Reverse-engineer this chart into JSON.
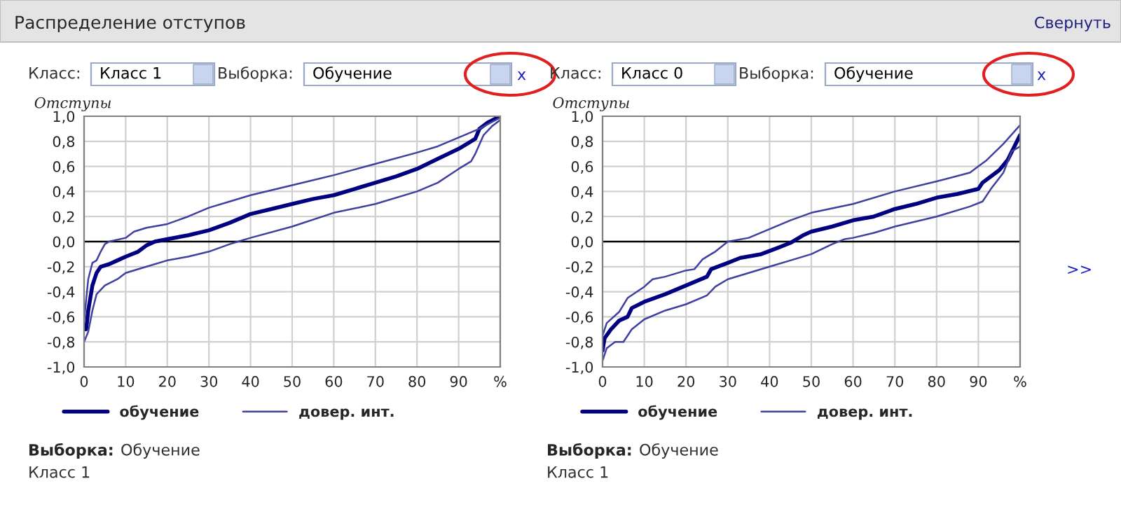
{
  "chart_data": [
    {
      "type": "line",
      "title": "Распределение отступов",
      "ylabel": "Отступы",
      "annotations": [
        "Свернуть",
        "Класс:",
        "Класс 1",
        "Выборка:",
        "Обучение",
        "x",
        "Выборка:",
        "Обучение",
        "Класс 1"
      ],
      "series": [
        {
          "name": "обучение",
          "color": "#000080",
          "x": [
            0,
            0.5,
            1,
            1.5,
            2,
            3,
            4,
            6,
            8,
            10,
            13,
            15,
            17,
            20,
            25,
            30,
            35,
            40,
            45,
            50,
            55,
            60,
            65,
            70,
            75,
            80,
            85,
            90,
            93,
            94,
            95,
            97,
            100
          ],
          "values": [
            -0.7,
            -0.7,
            -0.55,
            -0.45,
            -0.35,
            -0.25,
            -0.2,
            -0.18,
            -0.15,
            -0.12,
            -0.08,
            -0.03,
            0.0,
            0.02,
            0.05,
            0.09,
            0.15,
            0.22,
            0.26,
            0.3,
            0.34,
            0.37,
            0.42,
            0.47,
            0.52,
            0.58,
            0.66,
            0.74,
            0.8,
            0.82,
            0.9,
            0.95,
            1.0
          ]
        },
        {
          "name": "довер. инт.",
          "color": "#4040a0",
          "x": [
            0,
            1,
            2,
            3,
            4,
            5,
            6,
            10,
            12,
            15,
            20,
            25,
            30,
            35,
            40,
            50,
            60,
            70,
            80,
            85,
            90,
            95,
            100
          ],
          "values": [
            -0.63,
            -0.3,
            -0.17,
            -0.15,
            -0.08,
            -0.02,
            0.0,
            0.03,
            0.08,
            0.11,
            0.14,
            0.2,
            0.27,
            0.32,
            0.37,
            0.45,
            0.53,
            0.62,
            0.71,
            0.76,
            0.83,
            0.9,
            0.99
          ]
        },
        {
          "color": "#4040a0",
          "x": [
            0,
            1,
            2,
            3,
            5,
            8,
            10,
            15,
            20,
            25,
            30,
            35,
            37,
            40,
            50,
            60,
            70,
            80,
            85,
            90,
            93,
            94,
            96,
            98,
            100
          ],
          "values": [
            -0.8,
            -0.72,
            -0.55,
            -0.42,
            -0.35,
            -0.3,
            -0.25,
            -0.2,
            -0.15,
            -0.12,
            -0.08,
            -0.02,
            0.0,
            0.03,
            0.12,
            0.23,
            0.3,
            0.4,
            0.47,
            0.58,
            0.64,
            0.7,
            0.85,
            0.92,
            0.97
          ]
        }
      ],
      "xlim": [
        0,
        100
      ],
      "xticks": [
        0,
        10,
        20,
        30,
        40,
        50,
        60,
        70,
        80,
        90,
        {
          "value": 100,
          "label": "%"
        }
      ],
      "ylim": [
        -1.0,
        1.0
      ],
      "yticks": [
        {
          "value": -1.0,
          "label": "-1,0"
        },
        {
          "value": -0.8,
          "label": "-0,8"
        },
        {
          "value": -0.6,
          "label": "-0,6"
        },
        {
          "value": -0.4,
          "label": "-0,4"
        },
        {
          "value": -0.2,
          "label": "-0,2"
        },
        {
          "value": 0.0,
          "label": "0,0"
        },
        {
          "value": 0.2,
          "label": "0,2"
        },
        {
          "value": 0.4,
          "label": "0,4"
        },
        {
          "value": 0.6,
          "label": "0,6"
        },
        {
          "value": 0.8,
          "label": "0,8"
        },
        {
          "value": 1.0,
          "label": "1,0"
        }
      ],
      "ref_lines": [
        {
          "axis": "y",
          "value": 0,
          "color": "#000000"
        }
      ],
      "grid": true,
      "legend": "bottom"
    },
    {
      "type": "line",
      "ylabel": "Отступы",
      "annotations": [
        "Класс:",
        "Класс 0",
        "Выборка:",
        "Обучение",
        "x",
        ">>",
        "Выборка:",
        "Обучение",
        "Класс 1"
      ],
      "series": [
        {
          "name": "обучение",
          "color": "#000080",
          "x": [
            0,
            0.5,
            2,
            4,
            6,
            7,
            10,
            15,
            20,
            25,
            26,
            30,
            33,
            38,
            42,
            45,
            48,
            50,
            55,
            60,
            65,
            70,
            75,
            80,
            85,
            90,
            91,
            95,
            97,
            100
          ],
          "values": [
            -0.87,
            -0.77,
            -0.7,
            -0.63,
            -0.6,
            -0.53,
            -0.48,
            -0.42,
            -0.35,
            -0.28,
            -0.22,
            -0.17,
            -0.13,
            -0.1,
            -0.05,
            -0.01,
            0.05,
            0.08,
            0.12,
            0.17,
            0.2,
            0.26,
            0.3,
            0.35,
            0.38,
            0.42,
            0.47,
            0.57,
            0.65,
            0.85
          ]
        },
        {
          "name": "довер. инт.",
          "color": "#4040a0",
          "x": [
            0,
            1,
            4,
            6,
            10,
            12,
            15,
            20,
            22,
            24,
            27,
            30,
            35,
            40,
            45,
            50,
            60,
            70,
            80,
            88,
            90,
            92,
            96,
            100
          ],
          "values": [
            -0.75,
            -0.65,
            -0.56,
            -0.45,
            -0.36,
            -0.3,
            -0.28,
            -0.23,
            -0.22,
            -0.14,
            -0.08,
            0.0,
            0.03,
            0.1,
            0.17,
            0.23,
            0.3,
            0.4,
            0.48,
            0.55,
            0.6,
            0.65,
            0.78,
            0.93
          ]
        },
        {
          "color": "#4040a0",
          "x": [
            0,
            1,
            3,
            5,
            7,
            10,
            15,
            20,
            25,
            27,
            30,
            35,
            40,
            45,
            50,
            55,
            58,
            60,
            65,
            70,
            80,
            88,
            91,
            93,
            96,
            98,
            100
          ],
          "values": [
            -0.95,
            -0.85,
            -0.8,
            -0.8,
            -0.7,
            -0.62,
            -0.55,
            -0.5,
            -0.43,
            -0.36,
            -0.3,
            -0.25,
            -0.2,
            -0.15,
            -0.1,
            -0.02,
            0.02,
            0.03,
            0.07,
            0.12,
            0.2,
            0.28,
            0.32,
            0.42,
            0.55,
            0.72,
            0.76
          ]
        }
      ],
      "xlim": [
        0,
        100
      ],
      "xticks": [
        0,
        10,
        20,
        30,
        40,
        50,
        60,
        70,
        80,
        90,
        {
          "value": 100,
          "label": "%"
        }
      ],
      "ylim": [
        -1.0,
        1.0
      ],
      "yticks": [
        {
          "value": -1.0,
          "label": "-1,0"
        },
        {
          "value": -0.8,
          "label": "-0,8"
        },
        {
          "value": -0.6,
          "label": "-0,6"
        },
        {
          "value": -0.4,
          "label": "-0,4"
        },
        {
          "value": -0.2,
          "label": "-0,2"
        },
        {
          "value": 0.0,
          "label": "0,0"
        },
        {
          "value": 0.2,
          "label": "0,2"
        },
        {
          "value": 0.4,
          "label": "0,4"
        },
        {
          "value": 0.6,
          "label": "0,6"
        },
        {
          "value": 0.8,
          "label": "0,8"
        },
        {
          "value": 1.0,
          "label": "1,0"
        }
      ],
      "ref_lines": [
        {
          "axis": "y",
          "value": 0,
          "color": "#000000"
        }
      ],
      "grid": true,
      "legend": "bottom"
    }
  ]
}
